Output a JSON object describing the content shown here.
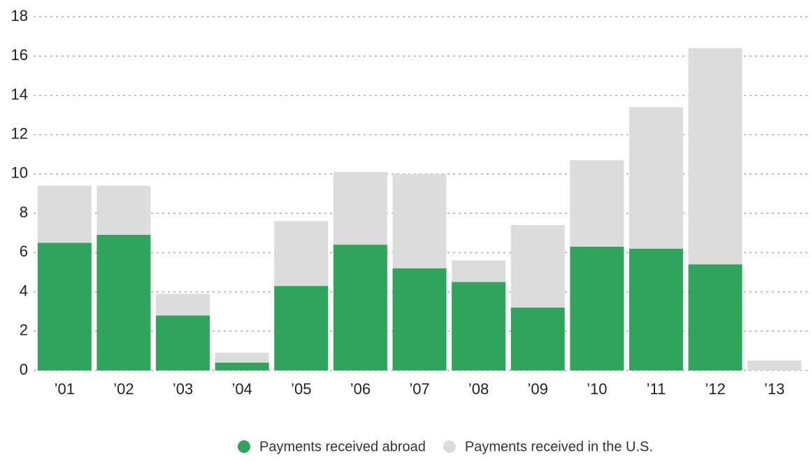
{
  "chart_data": {
    "type": "bar",
    "stacked": true,
    "categories": [
      "’01",
      "’02",
      "’03",
      "’04",
      "’05",
      "’06",
      "’07",
      "’08",
      "’09",
      "’10",
      "’11",
      "’12",
      "’13"
    ],
    "series": [
      {
        "name": "Payments received abroad",
        "color": "#2ea55a",
        "values": [
          6.5,
          6.9,
          2.8,
          0.4,
          4.3,
          6.4,
          5.2,
          4.5,
          3.2,
          6.3,
          6.2,
          5.4,
          0
        ]
      },
      {
        "name": "Payments received in the U.S.",
        "color": "#dcdcdc",
        "values": [
          2.9,
          2.5,
          1.1,
          0.5,
          3.3,
          3.7,
          4.8,
          1.1,
          4.2,
          4.4,
          7.2,
          11.0,
          0.5
        ]
      }
    ],
    "ylim": [
      0,
      18
    ],
    "yticks": [
      0,
      2,
      4,
      6,
      8,
      10,
      12,
      14,
      16,
      18
    ],
    "grid": true
  }
}
